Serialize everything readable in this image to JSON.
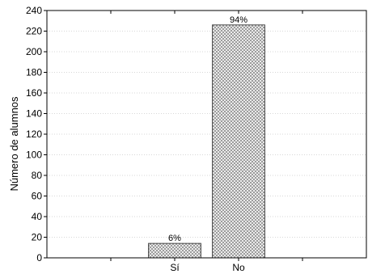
{
  "chart_data": {
    "type": "bar",
    "title": "",
    "xlabel": "",
    "ylabel": "Número de alumnos",
    "categories": [
      "Sí",
      "No"
    ],
    "values": [
      14,
      226
    ],
    "data_labels": [
      "6%",
      "94%"
    ],
    "ylim": [
      0,
      240
    ],
    "yticks": [
      "0",
      "20",
      "40",
      "60",
      "80",
      "100",
      "120",
      "140",
      "160",
      "180",
      "200",
      "220",
      "240"
    ],
    "grid": true,
    "legend": "none",
    "bar_fill": "crosshatch",
    "colors": {
      "bar_stroke": "#404040",
      "hatch": "#8a8a8a",
      "grid": "#b0b0b0",
      "axis": "#000000"
    }
  }
}
